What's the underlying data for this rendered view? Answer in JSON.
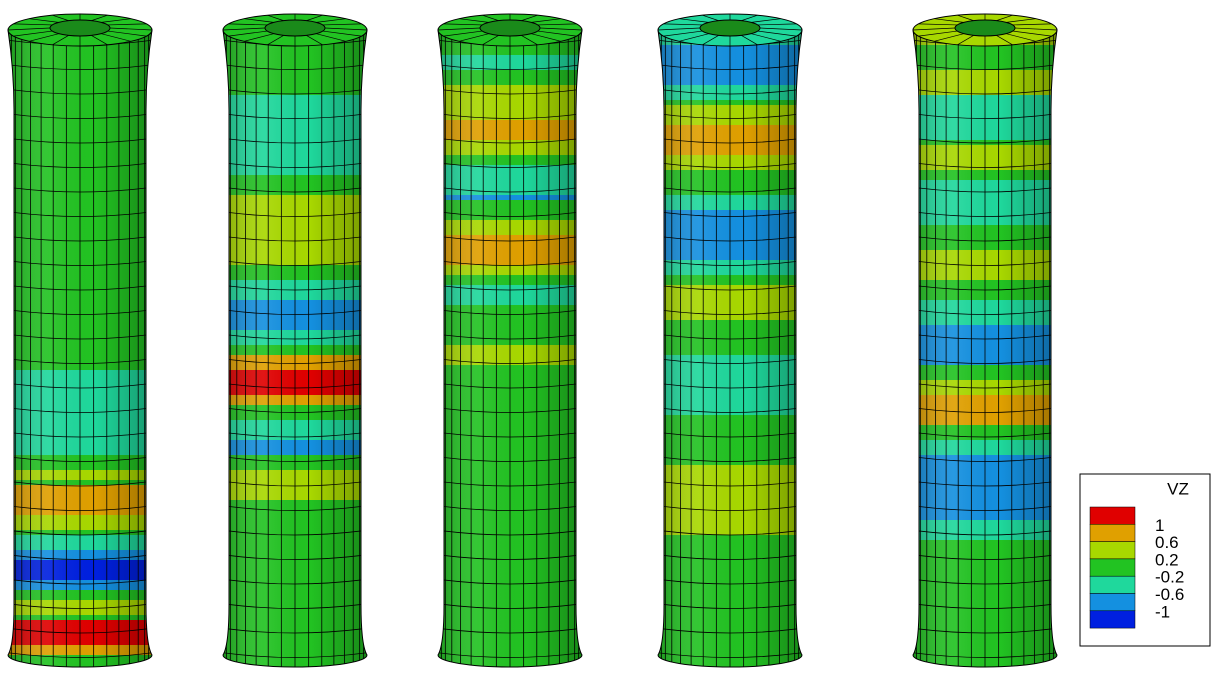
{
  "legend": {
    "title": "VZ",
    "labels": [
      "1",
      "0.6",
      "0.2",
      "-0.2",
      "-0.6",
      "-1"
    ]
  }
}
